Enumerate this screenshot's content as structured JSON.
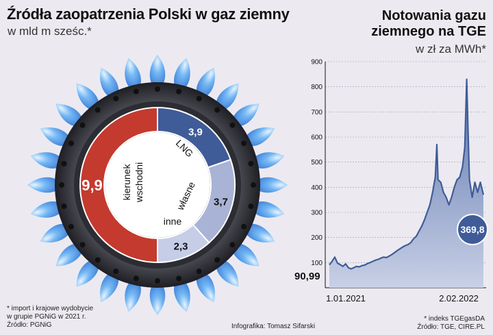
{
  "left": {
    "title": "Źródła zaopatrzenia Polski w gaz ziemny",
    "subtitle": "w mld m sześc.*",
    "footnote": [
      "* import i krajowe wydobycie",
      "w grupie PGNiG w 2021 r.",
      "Źródło: PGNiG"
    ]
  },
  "right": {
    "title_line1": "Notowania gazu",
    "title_line2": "ziemnego na TGE",
    "subtitle": "w zł za MWh*",
    "footnote": [
      "* indeks TGEgasDA",
      "Źródło: TGE, CIRE.PL"
    ]
  },
  "credit": "Infografika: Tomasz Sifarski",
  "colors": {
    "red": "#c43a2e",
    "dark_blue": "#3f5c98",
    "light_blue": "#a8b3d6",
    "lighter_blue": "#c6cde6",
    "ring": "#3a3a42"
  },
  "chart_data": [
    {
      "type": "pie",
      "variant": "donut",
      "segments": [
        {
          "label": "kierunek wschodni",
          "value": 9.9,
          "value_label": "9,9",
          "color": "#c43a2e"
        },
        {
          "label": "LNG",
          "value": 3.9,
          "value_label": "3,9",
          "color": "#3f5c98"
        },
        {
          "label": "własne",
          "value": 3.7,
          "value_label": "3,7",
          "color": "#a8b3d6"
        },
        {
          "label": "inne",
          "value": 2.3,
          "value_label": "2,3",
          "color": "#c6cde6"
        }
      ]
    },
    {
      "type": "area",
      "ylim": [
        0,
        900
      ],
      "yticks": [
        100,
        200,
        300,
        400,
        500,
        600,
        700,
        800,
        900
      ],
      "xlabels": [
        "1.01.2021",
        "2.02.2022"
      ],
      "start_label": "90,99",
      "end_label": "369,8",
      "series_color": "#3f5c98",
      "points": [
        [
          "2021-01-01",
          91
        ],
        [
          "2021-01-08",
          105
        ],
        [
          "2021-01-15",
          122
        ],
        [
          "2021-01-22",
          98
        ],
        [
          "2021-01-29",
          92
        ],
        [
          "2021-02-05",
          85
        ],
        [
          "2021-02-12",
          95
        ],
        [
          "2021-02-19",
          80
        ],
        [
          "2021-02-26",
          75
        ],
        [
          "2021-03-05",
          80
        ],
        [
          "2021-03-12",
          85
        ],
        [
          "2021-03-19",
          83
        ],
        [
          "2021-03-26",
          88
        ],
        [
          "2021-04-02",
          90
        ],
        [
          "2021-04-09",
          96
        ],
        [
          "2021-04-16",
          100
        ],
        [
          "2021-04-23",
          105
        ],
        [
          "2021-04-30",
          110
        ],
        [
          "2021-05-07",
          113
        ],
        [
          "2021-05-14",
          118
        ],
        [
          "2021-05-21",
          122
        ],
        [
          "2021-05-28",
          120
        ],
        [
          "2021-06-04",
          126
        ],
        [
          "2021-06-11",
          132
        ],
        [
          "2021-06-18",
          140
        ],
        [
          "2021-06-25",
          148
        ],
        [
          "2021-07-02",
          155
        ],
        [
          "2021-07-09",
          162
        ],
        [
          "2021-07-16",
          168
        ],
        [
          "2021-07-23",
          172
        ],
        [
          "2021-07-30",
          180
        ],
        [
          "2021-08-06",
          195
        ],
        [
          "2021-08-13",
          205
        ],
        [
          "2021-08-20",
          225
        ],
        [
          "2021-08-27",
          245
        ],
        [
          "2021-09-03",
          270
        ],
        [
          "2021-09-10",
          300
        ],
        [
          "2021-09-17",
          330
        ],
        [
          "2021-09-24",
          380
        ],
        [
          "2021-10-01",
          440
        ],
        [
          "2021-10-05",
          570
        ],
        [
          "2021-10-08",
          430
        ],
        [
          "2021-10-15",
          420
        ],
        [
          "2021-10-22",
          380
        ],
        [
          "2021-10-29",
          360
        ],
        [
          "2021-11-05",
          330
        ],
        [
          "2021-11-12",
          360
        ],
        [
          "2021-11-19",
          400
        ],
        [
          "2021-11-26",
          430
        ],
        [
          "2021-12-03",
          440
        ],
        [
          "2021-12-10",
          480
        ],
        [
          "2021-12-16",
          560
        ],
        [
          "2021-12-21",
          830
        ],
        [
          "2021-12-24",
          650
        ],
        [
          "2021-12-28",
          430
        ],
        [
          "2022-01-04",
          360
        ],
        [
          "2022-01-11",
          420
        ],
        [
          "2022-01-18",
          380
        ],
        [
          "2022-01-25",
          420
        ],
        [
          "2022-02-02",
          370
        ]
      ]
    }
  ]
}
